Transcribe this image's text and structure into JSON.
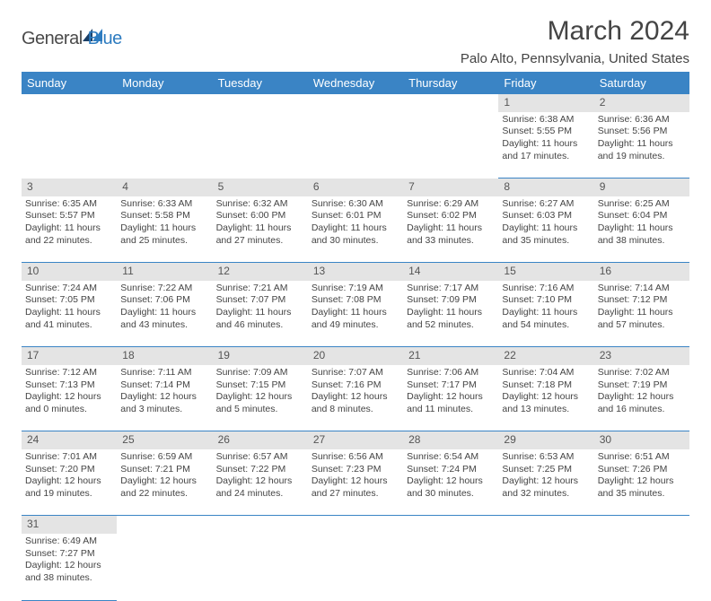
{
  "logo": {
    "word1": "General",
    "word2": "Blue"
  },
  "title": "March 2024",
  "location": "Palo Alto, Pennsylvania, United States",
  "colors": {
    "header_bg": "#3a84c5",
    "header_text": "#ffffff",
    "daynum_bg": "#e4e4e4",
    "row_border": "#3a84c5",
    "text": "#444444",
    "logo_gray": "#4a4a4a",
    "logo_blue": "#2e7cc0"
  },
  "weekdays": [
    "Sunday",
    "Monday",
    "Tuesday",
    "Wednesday",
    "Thursday",
    "Friday",
    "Saturday"
  ],
  "weeks": [
    [
      null,
      null,
      null,
      null,
      null,
      {
        "n": "1",
        "sunrise": "6:38 AM",
        "sunset": "5:55 PM",
        "dl1": "11 hours",
        "dl2": "and 17 minutes."
      },
      {
        "n": "2",
        "sunrise": "6:36 AM",
        "sunset": "5:56 PM",
        "dl1": "11 hours",
        "dl2": "and 19 minutes."
      }
    ],
    [
      {
        "n": "3",
        "sunrise": "6:35 AM",
        "sunset": "5:57 PM",
        "dl1": "11 hours",
        "dl2": "and 22 minutes."
      },
      {
        "n": "4",
        "sunrise": "6:33 AM",
        "sunset": "5:58 PM",
        "dl1": "11 hours",
        "dl2": "and 25 minutes."
      },
      {
        "n": "5",
        "sunrise": "6:32 AM",
        "sunset": "6:00 PM",
        "dl1": "11 hours",
        "dl2": "and 27 minutes."
      },
      {
        "n": "6",
        "sunrise": "6:30 AM",
        "sunset": "6:01 PM",
        "dl1": "11 hours",
        "dl2": "and 30 minutes."
      },
      {
        "n": "7",
        "sunrise": "6:29 AM",
        "sunset": "6:02 PM",
        "dl1": "11 hours",
        "dl2": "and 33 minutes."
      },
      {
        "n": "8",
        "sunrise": "6:27 AM",
        "sunset": "6:03 PM",
        "dl1": "11 hours",
        "dl2": "and 35 minutes."
      },
      {
        "n": "9",
        "sunrise": "6:25 AM",
        "sunset": "6:04 PM",
        "dl1": "11 hours",
        "dl2": "and 38 minutes."
      }
    ],
    [
      {
        "n": "10",
        "sunrise": "7:24 AM",
        "sunset": "7:05 PM",
        "dl1": "11 hours",
        "dl2": "and 41 minutes."
      },
      {
        "n": "11",
        "sunrise": "7:22 AM",
        "sunset": "7:06 PM",
        "dl1": "11 hours",
        "dl2": "and 43 minutes."
      },
      {
        "n": "12",
        "sunrise": "7:21 AM",
        "sunset": "7:07 PM",
        "dl1": "11 hours",
        "dl2": "and 46 minutes."
      },
      {
        "n": "13",
        "sunrise": "7:19 AM",
        "sunset": "7:08 PM",
        "dl1": "11 hours",
        "dl2": "and 49 minutes."
      },
      {
        "n": "14",
        "sunrise": "7:17 AM",
        "sunset": "7:09 PM",
        "dl1": "11 hours",
        "dl2": "and 52 minutes."
      },
      {
        "n": "15",
        "sunrise": "7:16 AM",
        "sunset": "7:10 PM",
        "dl1": "11 hours",
        "dl2": "and 54 minutes."
      },
      {
        "n": "16",
        "sunrise": "7:14 AM",
        "sunset": "7:12 PM",
        "dl1": "11 hours",
        "dl2": "and 57 minutes."
      }
    ],
    [
      {
        "n": "17",
        "sunrise": "7:12 AM",
        "sunset": "7:13 PM",
        "dl1": "12 hours",
        "dl2": "and 0 minutes."
      },
      {
        "n": "18",
        "sunrise": "7:11 AM",
        "sunset": "7:14 PM",
        "dl1": "12 hours",
        "dl2": "and 3 minutes."
      },
      {
        "n": "19",
        "sunrise": "7:09 AM",
        "sunset": "7:15 PM",
        "dl1": "12 hours",
        "dl2": "and 5 minutes."
      },
      {
        "n": "20",
        "sunrise": "7:07 AM",
        "sunset": "7:16 PM",
        "dl1": "12 hours",
        "dl2": "and 8 minutes."
      },
      {
        "n": "21",
        "sunrise": "7:06 AM",
        "sunset": "7:17 PM",
        "dl1": "12 hours",
        "dl2": "and 11 minutes."
      },
      {
        "n": "22",
        "sunrise": "7:04 AM",
        "sunset": "7:18 PM",
        "dl1": "12 hours",
        "dl2": "and 13 minutes."
      },
      {
        "n": "23",
        "sunrise": "7:02 AM",
        "sunset": "7:19 PM",
        "dl1": "12 hours",
        "dl2": "and 16 minutes."
      }
    ],
    [
      {
        "n": "24",
        "sunrise": "7:01 AM",
        "sunset": "7:20 PM",
        "dl1": "12 hours",
        "dl2": "and 19 minutes."
      },
      {
        "n": "25",
        "sunrise": "6:59 AM",
        "sunset": "7:21 PM",
        "dl1": "12 hours",
        "dl2": "and 22 minutes."
      },
      {
        "n": "26",
        "sunrise": "6:57 AM",
        "sunset": "7:22 PM",
        "dl1": "12 hours",
        "dl2": "and 24 minutes."
      },
      {
        "n": "27",
        "sunrise": "6:56 AM",
        "sunset": "7:23 PM",
        "dl1": "12 hours",
        "dl2": "and 27 minutes."
      },
      {
        "n": "28",
        "sunrise": "6:54 AM",
        "sunset": "7:24 PM",
        "dl1": "12 hours",
        "dl2": "and 30 minutes."
      },
      {
        "n": "29",
        "sunrise": "6:53 AM",
        "sunset": "7:25 PM",
        "dl1": "12 hours",
        "dl2": "and 32 minutes."
      },
      {
        "n": "30",
        "sunrise": "6:51 AM",
        "sunset": "7:26 PM",
        "dl1": "12 hours",
        "dl2": "and 35 minutes."
      }
    ],
    [
      {
        "n": "31",
        "sunrise": "6:49 AM",
        "sunset": "7:27 PM",
        "dl1": "12 hours",
        "dl2": "and 38 minutes."
      },
      null,
      null,
      null,
      null,
      null,
      null
    ]
  ],
  "labels": {
    "sunrise": "Sunrise:",
    "sunset": "Sunset:",
    "daylight": "Daylight:"
  }
}
